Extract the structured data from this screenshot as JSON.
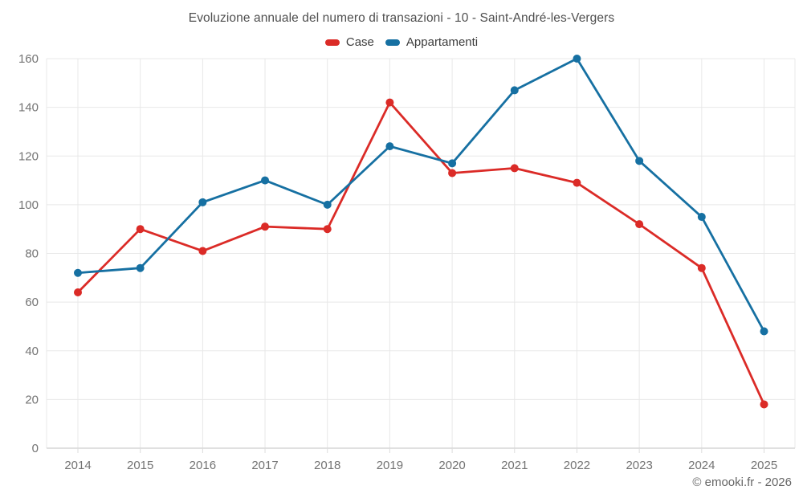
{
  "chart_data": {
    "type": "line",
    "title": "Evoluzione annuale del numero di transazioni - 10 - Saint-André-les-Vergers",
    "categories": [
      "2014",
      "2015",
      "2016",
      "2017",
      "2018",
      "2019",
      "2020",
      "2021",
      "2022",
      "2023",
      "2024",
      "2025"
    ],
    "series": [
      {
        "name": "Case",
        "color": "#db2b27",
        "values": [
          64,
          90,
          81,
          91,
          90,
          142,
          113,
          115,
          109,
          92,
          74,
          18
        ]
      },
      {
        "name": "Appartamenti",
        "color": "#1670a2",
        "values": [
          72,
          74,
          101,
          110,
          100,
          124,
          117,
          147,
          160,
          118,
          95,
          48
        ]
      }
    ],
    "xlabel": "",
    "ylabel": "",
    "ylim": [
      0,
      160
    ],
    "ytick_step": 20,
    "grid": "on",
    "legend_position": "top",
    "marker": "circle"
  },
  "footer": {
    "text": "© emooki.fr - 2026"
  },
  "style": {
    "background": "#ffffff",
    "title_color": "#4f4f4f",
    "axis_label_color": "#737373",
    "grid_color": "#e8e8e8",
    "axis_line_color": "#d6d6d6",
    "tick_color": "#dcdcdc"
  }
}
